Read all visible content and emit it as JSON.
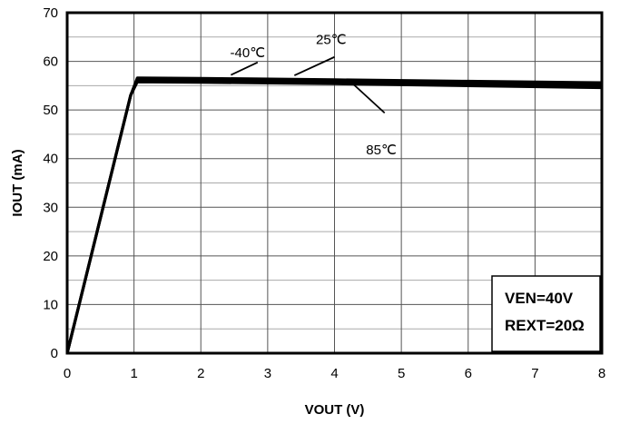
{
  "chart_data": {
    "type": "line",
    "title": "",
    "xlabel": "VOUT (V)",
    "ylabel": "IOUT (mA)",
    "xlim": [
      0,
      8
    ],
    "ylim": [
      0,
      70
    ],
    "x_ticks": [
      0,
      1,
      2,
      3,
      4,
      5,
      6,
      7,
      8
    ],
    "y_ticks": [
      0,
      10,
      20,
      30,
      40,
      50,
      60,
      70
    ],
    "grid": true,
    "minor_y_grid_step": 5,
    "series": [
      {
        "name": "-40℃",
        "x": [
          0,
          0.95,
          1.05,
          2,
          4,
          6,
          8
        ],
        "y": [
          0,
          53,
          56.6,
          56.5,
          56.2,
          55.9,
          55.6
        ]
      },
      {
        "name": "25℃",
        "x": [
          0,
          0.95,
          1.05,
          2,
          4,
          6,
          8
        ],
        "y": [
          0,
          53,
          56.2,
          56.1,
          55.8,
          55.5,
          55.1
        ]
      },
      {
        "name": "85℃",
        "x": [
          0,
          0.95,
          1.05,
          2,
          4,
          6,
          8
        ],
        "y": [
          0,
          53,
          55.8,
          55.7,
          55.4,
          55.0,
          54.6
        ]
      }
    ],
    "annotations": [
      {
        "text": "-40℃",
        "label_x": 2.7,
        "label_y": 60.9,
        "line_from": [
          2.85,
          59.8
        ],
        "line_to": [
          2.45,
          57.2
        ]
      },
      {
        "text": "25℃",
        "label_x": 3.95,
        "label_y": 63.6,
        "line_from": [
          4.0,
          60.9
        ],
        "line_to": [
          3.4,
          57.1
        ]
      },
      {
        "text": "85℃",
        "label_x": 4.7,
        "label_y": 40.9,
        "line_from": [
          4.25,
          55.7
        ],
        "line_to": [
          4.75,
          49.4
        ]
      }
    ],
    "conditions": [
      "VEN=40V",
      "REXT=20Ω"
    ],
    "line_color": "#000000"
  }
}
